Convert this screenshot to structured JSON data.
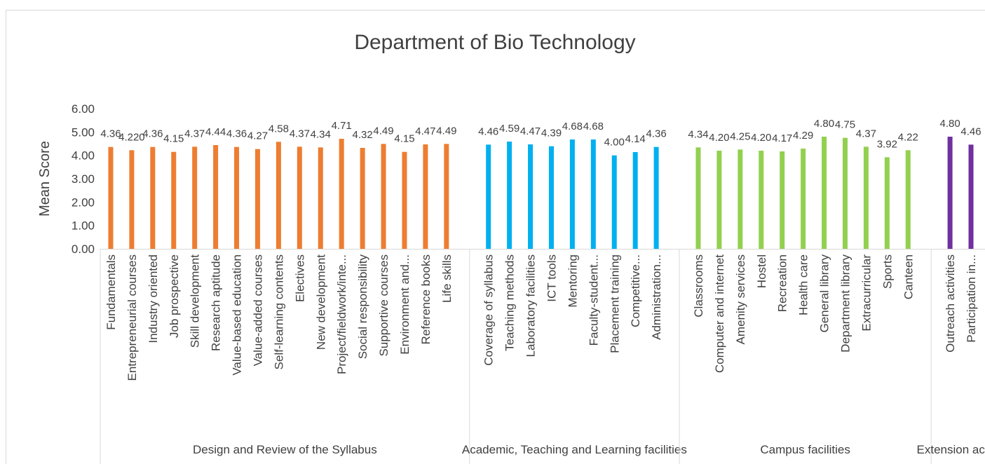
{
  "chart_data": {
    "type": "grouped_bar",
    "title": "Department of Bio Technology",
    "ylabel": "Mean Score",
    "ylim": [
      0,
      6
    ],
    "yticks": [
      {
        "value": 0,
        "label": "0.00"
      },
      {
        "value": 1,
        "label": "1.00"
      },
      {
        "value": 2,
        "label": "2.00"
      },
      {
        "value": 3,
        "label": "3.00"
      },
      {
        "value": 4,
        "label": "4.00"
      },
      {
        "value": 5,
        "label": "5.00"
      },
      {
        "value": 6,
        "label": "6.00"
      }
    ],
    "groups": [
      {
        "name": "Design and Review of the Syllabus",
        "color": "#ed7d31",
        "categories": [
          "Fundamentals",
          "Entrepreneurial courses",
          "Industry oriented",
          "Job prospective",
          "Skill development",
          "Research aptitude",
          "Value-based education",
          "Value-added courses",
          "Self-learning contents",
          "Electives",
          "New development",
          "Project/fieldwork/inte...",
          "Social responsibility",
          "Supportive courses",
          "Environment and...",
          "Reference books",
          "Life skills"
        ],
        "values": [
          4.36,
          4.22,
          4.36,
          4.15,
          4.37,
          4.44,
          4.36,
          4.27,
          4.58,
          4.37,
          4.34,
          4.71,
          4.32,
          4.49,
          4.15,
          4.47,
          4.49
        ],
        "value_labels": [
          "4.36",
          "4.220",
          "4.36",
          "4.15",
          "4.37",
          "4.44",
          "4.36",
          "4.27",
          "4.58",
          "4.37",
          "4.34",
          "4.71",
          "4.32",
          "4.49",
          "4.15",
          "4.47",
          "4.49"
        ]
      },
      {
        "name": "Academic, Teaching and Learning facilities",
        "color": "#00b0f0",
        "categories": [
          "Coverage of syllabus",
          "Teaching methods",
          "Laboratory facilities",
          "ICT tools",
          "Mentoring",
          "Faculty-student...",
          "Placement training",
          "Competitive...",
          "Administration..."
        ],
        "values": [
          4.46,
          4.59,
          4.47,
          4.39,
          4.68,
          4.68,
          4.0,
          4.14,
          4.36
        ],
        "value_labels": [
          "4.46",
          "4.59",
          "4.47",
          "4.39",
          "4.68",
          "4.68",
          "4.00",
          "4.14",
          "4.36"
        ]
      },
      {
        "name": "Campus facilities",
        "color": "#92d050",
        "categories": [
          "Classrooms",
          "Computer and internet",
          "Amenity services",
          "Hostel",
          "Recreation",
          "Health care",
          "General library",
          "Department library",
          "Extracurricular",
          "Sports",
          "Canteen"
        ],
        "values": [
          4.34,
          4.2,
          4.25,
          4.2,
          4.17,
          4.29,
          4.8,
          4.75,
          4.37,
          3.92,
          4.22
        ],
        "value_labels": [
          "4.34",
          "4.20",
          "4.25",
          "4.20",
          "4.17",
          "4.29",
          "4.80",
          "4.75",
          "4.37",
          "3.92",
          "4.22"
        ]
      },
      {
        "name": "Extension activi",
        "color": "#7030a0",
        "categories": [
          "Outreach activities",
          "Participation in..."
        ],
        "values": [
          4.8,
          4.46
        ],
        "value_labels": [
          "4.80",
          "4.46"
        ]
      }
    ]
  }
}
